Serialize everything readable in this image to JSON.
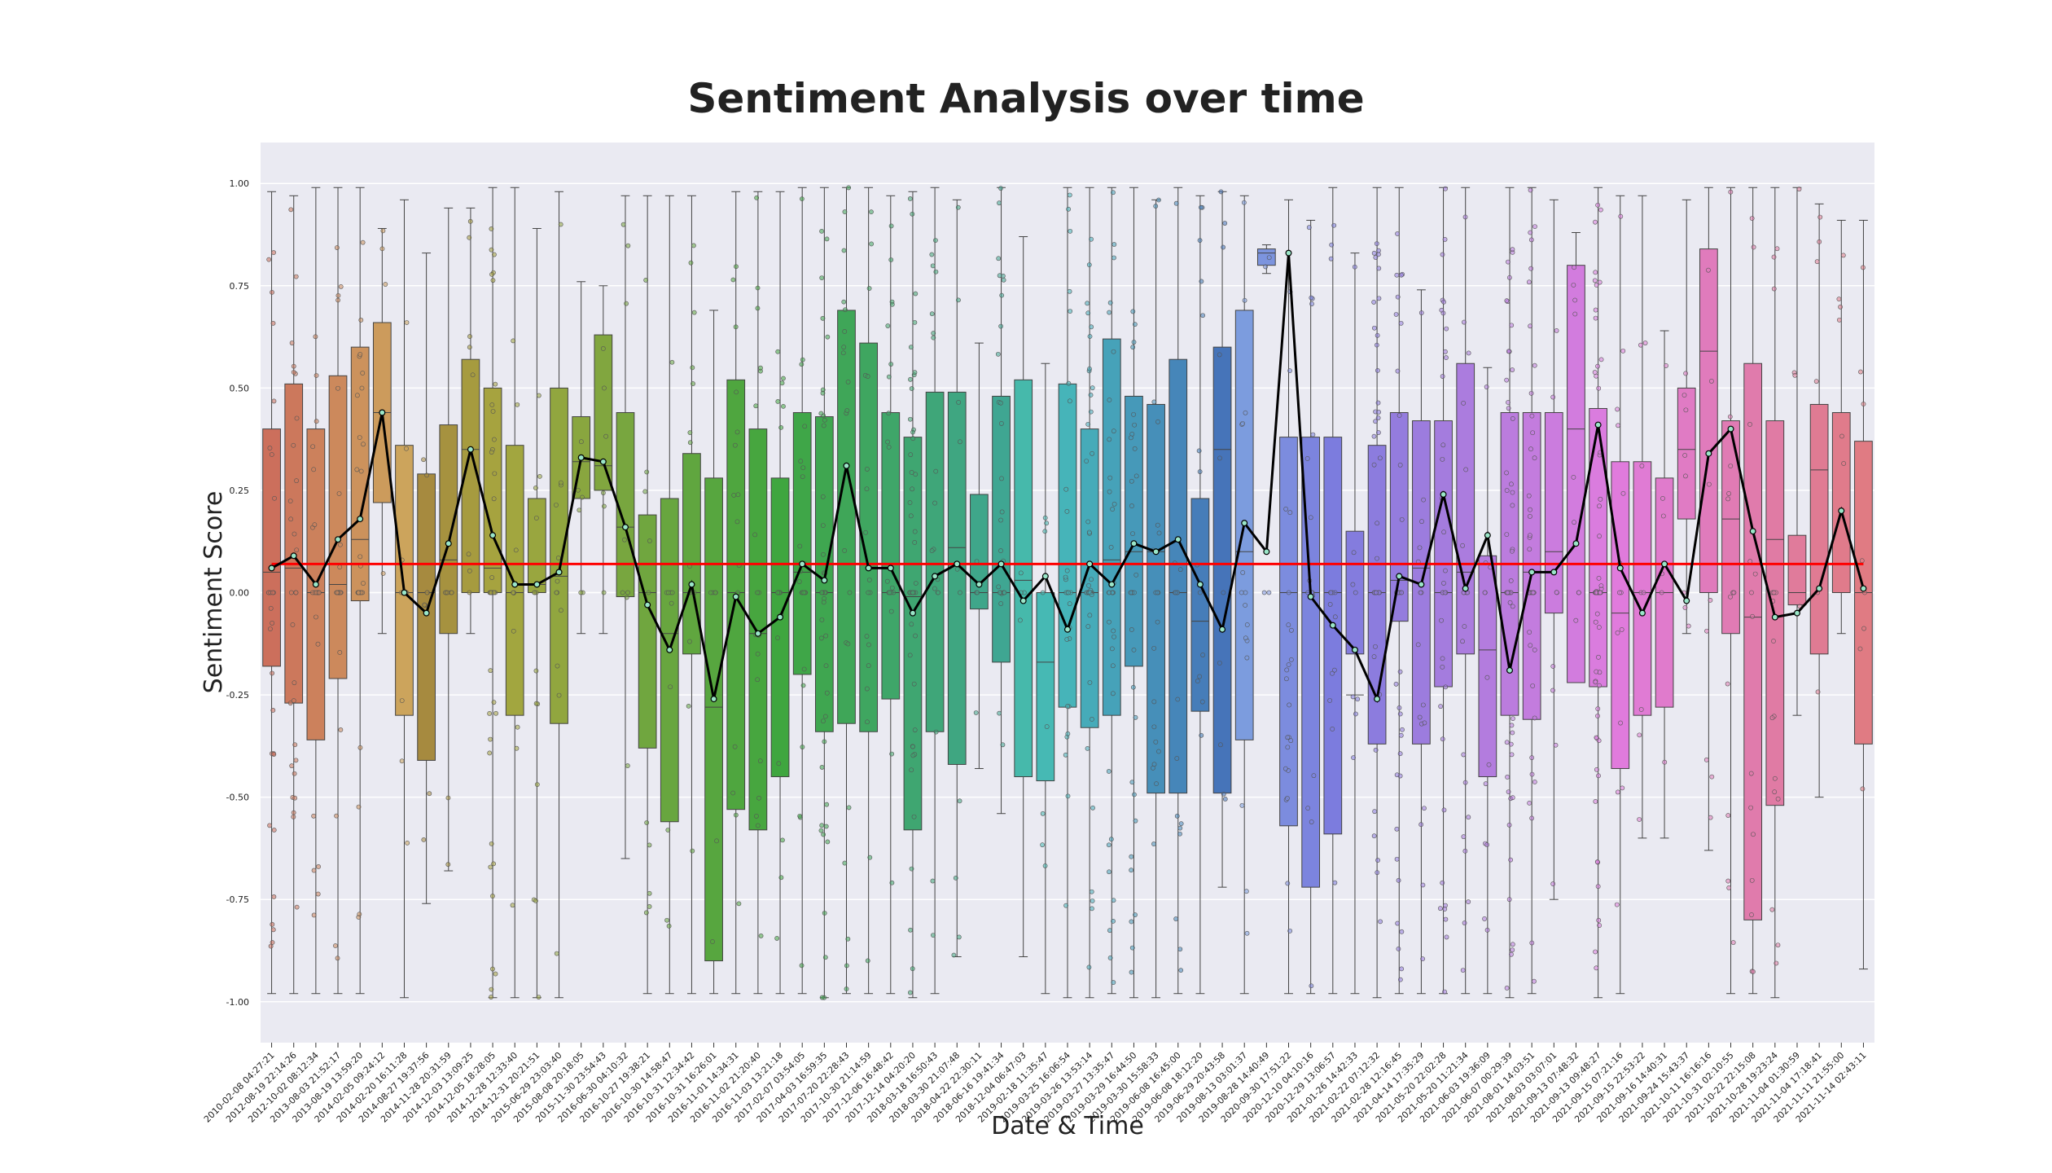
{
  "chart_data": {
    "type": "box",
    "title": "Sentiment Analysis over time",
    "xlabel": "Date & Time",
    "ylabel": "Sentiment Score",
    "ylim": [
      -1.1,
      1.1
    ],
    "yticks": [
      "1.00",
      "0.75",
      "0.50",
      "0.25",
      "0.00",
      "-0.25",
      "-0.50",
      "-0.75",
      "-1.00"
    ],
    "ytick_values": [
      1.0,
      0.75,
      0.5,
      0.25,
      0.0,
      -0.25,
      -0.5,
      -0.75,
      -1.0
    ],
    "grid": true,
    "background": "#eaeaf2",
    "mean_line": {
      "value": 0.07,
      "color": "#ff0000"
    },
    "trend_color": "#000000",
    "categories": [
      "2010-02-08 04:27:21",
      "2012-08-19 22:14:26",
      "2012-10-02 08:12:34",
      "2013-08-03 21:52:17",
      "2013-08-19 13:59:20",
      "2014-02-05 09:24:12",
      "2014-02-20 16:11:28",
      "2014-08-27 19:37:56",
      "2014-11-28 20:31:59",
      "2014-12-03 13:09:25",
      "2014-12-05 18:28:05",
      "2014-12-28 12:33:40",
      "2014-12-31 20:21:51",
      "2015-06-29 23:03:40",
      "2015-08-08 20:18:05",
      "2015-11-30 23:54:43",
      "2016-06-30 04:10:32",
      "2016-10-27 19:38:21",
      "2016-10-30 14:58:47",
      "2016-10-31 12:34:42",
      "2016-10-31 16:26:01",
      "2016-11-01 14:34:31",
      "2016-11-02 21:20:40",
      "2016-11-03 13:21:18",
      "2017-02-07 03:54:05",
      "2017-04-03 16:59:35",
      "2017-07-20 22:28:43",
      "2017-10-30 21:14:59",
      "2017-12-06 16:48:42",
      "2017-12-14 04:20:20",
      "2018-03-18 16:50:43",
      "2018-03-30 21:07:48",
      "2018-04-22 22:30:11",
      "2018-06-16 19:41:34",
      "2018-12-04 06:47:03",
      "2019-02-18 11:35:47",
      "2019-03-25 16:06:54",
      "2019-03-26 13:53:14",
      "2019-03-27 13:35:47",
      "2019-03-29 16:44:50",
      "2019-03-30 15:58:33",
      "2019-06-08 16:45:00",
      "2019-06-08 18:12:20",
      "2019-06-29 20:43:58",
      "2019-08-13 03:01:37",
      "2019-08-28 14:40:49",
      "2020-09-30 17:51:22",
      "2020-12-10 04:10:16",
      "2020-12-29 13:06:57",
      "2021-01-26 14:42:33",
      "2021-02-22 07:12:32",
      "2021-02-28 12:16:45",
      "2021-04-14 17:35:29",
      "2021-05-20 22:02:28",
      "2021-05-20 11:21:34",
      "2021-06-03 19:36:09",
      "2021-06-07 00:29:39",
      "2021-08-01 14:03:51",
      "2021-08-03 03:07:01",
      "2021-09-13 07:48:32",
      "2021-09-13 09:48:27",
      "2021-09-15 07:21:16",
      "2021-09-15 22:53:22",
      "2021-09-16 14:40:31",
      "2021-09-24 15:43:37",
      "2021-10-11 16:16:16",
      "2021-10-31 02:10:55",
      "2021-10-22 22:15:08",
      "2021-10-28 19:23:24",
      "2021-11-04 01:30:59",
      "2021-11-04 17:18:41",
      "2021-11-11 21:55:00",
      "2021-11-14 02:43:11"
    ],
    "series": [
      {
        "box_q1": [
          -0.18,
          -0.27,
          -0.36,
          -0.21,
          -0.02,
          0.22,
          -0.3,
          -0.41,
          -0.1,
          0.0,
          0.0,
          -0.3,
          0.0,
          -0.32,
          0.23,
          0.25,
          -0.01,
          -0.38,
          -0.56,
          -0.15,
          -0.9,
          -0.53,
          -0.58,
          -0.45,
          -0.2,
          -0.34,
          -0.32,
          -0.34,
          -0.26,
          -0.58,
          -0.34,
          -0.42,
          -0.04,
          -0.17,
          -0.45,
          -0.46,
          -0.28,
          -0.33,
          -0.3,
          -0.18,
          -0.49,
          -0.49,
          -0.29,
          -0.49,
          -0.36,
          0.8,
          -0.57,
          -0.72,
          -0.59,
          -0.15,
          -0.37,
          -0.07,
          -0.37,
          -0.23,
          -0.15,
          -0.45,
          -0.3,
          -0.31,
          -0.05,
          -0.22,
          -0.23,
          -0.43,
          -0.3,
          -0.28,
          0.18,
          0.0,
          -0.1,
          -0.8,
          -0.52,
          -0.03,
          -0.15,
          0.0,
          -0.37
        ],
        "box_median": [
          0.05,
          0.06,
          0.0,
          0.02,
          0.13,
          0.44,
          0.0,
          0.0,
          0.08,
          0.35,
          0.06,
          0.0,
          0.02,
          0.04,
          0.32,
          0.31,
          0.16,
          0.0,
          -0.1,
          0.0,
          -0.28,
          0.0,
          -0.1,
          0.0,
          0.05,
          0.0,
          0.07,
          0.07,
          0.0,
          -0.01,
          0.07,
          0.11,
          0.0,
          0.0,
          0.03,
          -0.17,
          0.0,
          0.0,
          0.08,
          0.1,
          0.1,
          0.0,
          -0.07,
          0.35,
          0.1,
          0.83,
          0.0,
          0.0,
          0.0,
          -0.25,
          0.0,
          0.03,
          0.06,
          0.0,
          0.05,
          -0.14,
          0.0,
          0.05,
          0.1,
          0.4,
          0.0,
          -0.05,
          0.0,
          0.0,
          0.35,
          0.59,
          0.18,
          -0.06,
          0.13,
          0.0,
          0.3,
          0.0,
          0.0
        ],
        "box_q3": [
          0.4,
          0.51,
          0.4,
          0.53,
          0.6,
          0.66,
          0.36,
          0.29,
          0.41,
          0.57,
          0.5,
          0.36,
          0.23,
          0.5,
          0.43,
          0.63,
          0.44,
          0.19,
          0.23,
          0.34,
          0.28,
          0.52,
          0.4,
          0.28,
          0.44,
          0.43,
          0.69,
          0.61,
          0.44,
          0.38,
          0.49,
          0.49,
          0.24,
          0.48,
          0.52,
          0.0,
          0.51,
          0.4,
          0.62,
          0.48,
          0.46,
          0.57,
          0.23,
          0.6,
          0.69,
          0.84,
          0.38,
          0.38,
          0.38,
          0.15,
          0.36,
          0.44,
          0.42,
          0.42,
          0.56,
          0.09,
          0.44,
          0.44,
          0.44,
          0.8,
          0.45,
          0.32,
          0.32,
          0.28,
          0.5,
          0.84,
          0.42,
          0.56,
          0.42,
          0.14,
          0.46,
          0.44,
          0.37
        ],
        "whisker_low": [
          -0.98,
          -0.98,
          -0.98,
          -0.98,
          -0.98,
          -0.1,
          -0.99,
          -0.76,
          -0.68,
          -0.1,
          -0.99,
          -0.99,
          -0.99,
          -0.99,
          -0.1,
          -0.1,
          -0.65,
          -0.98,
          -0.98,
          -0.98,
          -0.98,
          -0.98,
          -0.98,
          -0.98,
          -0.98,
          -0.99,
          -0.98,
          -0.98,
          -0.98,
          -0.99,
          -0.98,
          -0.89,
          -0.43,
          -0.54,
          -0.89,
          -0.98,
          -0.99,
          -0.99,
          -0.98,
          -0.99,
          -0.99,
          -0.98,
          -0.98,
          -0.72,
          -0.98,
          0.78,
          -0.98,
          -0.98,
          -0.98,
          -0.98,
          -0.99,
          -0.98,
          -0.98,
          -0.98,
          -0.98,
          -0.98,
          -0.99,
          -0.98,
          -0.75,
          -0.1,
          -0.99,
          -0.98,
          -0.6,
          -0.6,
          -0.1,
          -0.63,
          -0.98,
          -0.98,
          -0.99,
          -0.3,
          -0.5,
          -0.1,
          -0.92
        ],
        "whisker_high": [
          0.98,
          0.97,
          0.99,
          0.99,
          0.99,
          0.89,
          0.96,
          0.83,
          0.94,
          0.94,
          0.99,
          0.99,
          0.89,
          0.98,
          0.76,
          0.75,
          0.97,
          0.97,
          0.97,
          0.97,
          0.69,
          0.98,
          0.98,
          0.98,
          0.99,
          0.99,
          0.99,
          0.99,
          0.97,
          0.98,
          0.99,
          0.96,
          0.61,
          0.99,
          0.87,
          0.56,
          0.99,
          0.99,
          0.99,
          0.99,
          0.96,
          0.99,
          0.97,
          0.98,
          0.97,
          0.85,
          0.96,
          0.91,
          0.99,
          0.83,
          0.99,
          0.99,
          0.74,
          0.99,
          0.99,
          0.55,
          0.99,
          0.99,
          0.96,
          0.88,
          0.99,
          0.97,
          0.97,
          0.64,
          0.96,
          0.99,
          0.99,
          0.99,
          0.99,
          0.99,
          0.95,
          0.91,
          0.91
        ],
        "trend_mean": [
          0.06,
          0.09,
          0.02,
          0.13,
          0.18,
          0.44,
          0.0,
          -0.05,
          0.12,
          0.35,
          0.14,
          0.02,
          0.02,
          0.05,
          0.33,
          0.32,
          0.16,
          -0.03,
          -0.14,
          0.02,
          -0.26,
          -0.01,
          -0.1,
          -0.06,
          0.07,
          0.03,
          0.31,
          0.06,
          0.06,
          -0.05,
          0.04,
          0.07,
          0.02,
          0.07,
          -0.02,
          0.04,
          -0.09,
          0.07,
          0.02,
          0.12,
          0.1,
          0.13,
          0.02,
          -0.09,
          0.17,
          0.1,
          0.83,
          -0.01,
          -0.08,
          -0.14,
          -0.26,
          0.04,
          0.02,
          0.24,
          0.01,
          0.14,
          -0.19,
          0.05,
          0.05,
          0.12,
          0.41,
          0.06,
          -0.05,
          0.07,
          -0.02,
          0.34,
          0.4,
          0.15,
          -0.06,
          -0.05,
          0.01,
          0.2,
          0.01
        ]
      }
    ]
  }
}
